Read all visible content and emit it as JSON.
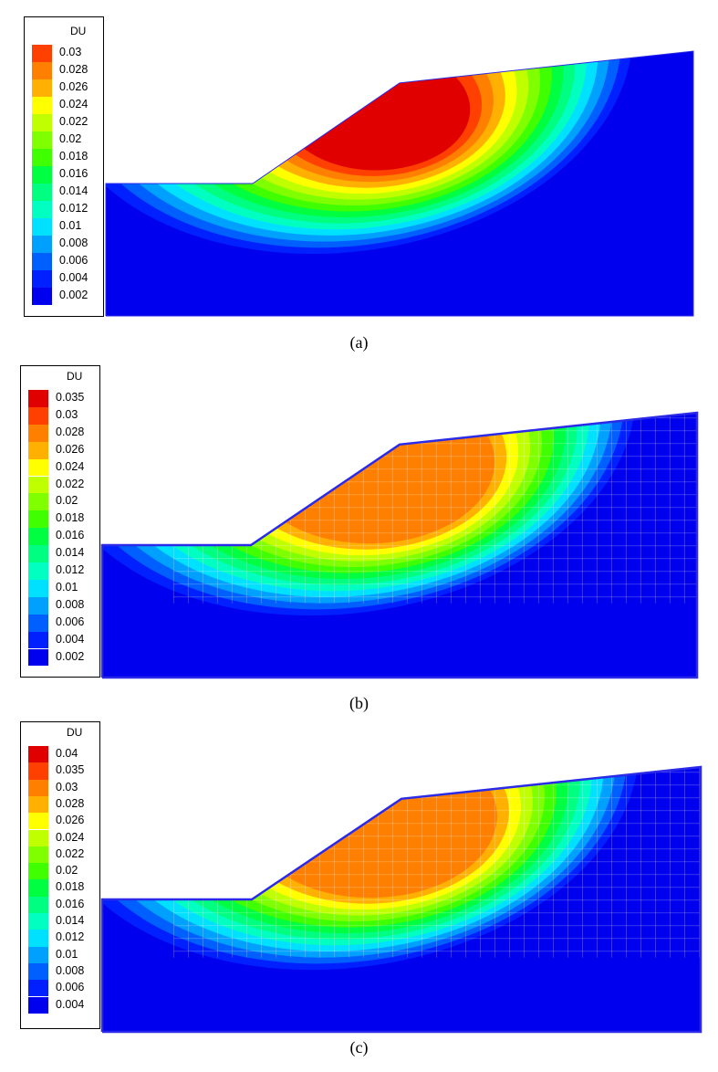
{
  "chart_data": [
    {
      "type": "heatmap",
      "legend_title": "DU",
      "caption": "(a)",
      "levels": [
        "0.03",
        "0.028",
        "0.026",
        "0.024",
        "0.022",
        "0.02",
        "0.018",
        "0.016",
        "0.014",
        "0.012",
        "0.01",
        "0.008",
        "0.006",
        "0.004",
        "0.002"
      ],
      "colors": [
        "#e00000",
        "#ff4000",
        "#ff8000",
        "#ffb000",
        "#ffff00",
        "#c0ff00",
        "#80ff00",
        "#40ff00",
        "#00ff40",
        "#00ff80",
        "#00ffc0",
        "#00e0ff",
        "#00a0ff",
        "#0060ff",
        "#0020ff",
        "#0000ee"
      ],
      "max_level_index": 0,
      "legend_placement": "left",
      "mesh_lines": false
    },
    {
      "type": "heatmap",
      "legend_title": "DU",
      "caption": "(b)",
      "levels": [
        "0.035",
        "0.03",
        "0.028",
        "0.026",
        "0.024",
        "0.022",
        "0.02",
        "0.018",
        "0.016",
        "0.014",
        "0.012",
        "0.01",
        "0.008",
        "0.006",
        "0.004",
        "0.002"
      ],
      "colors": [
        "#e00000",
        "#ff4000",
        "#ff8000",
        "#ffb000",
        "#ffff00",
        "#c0ff00",
        "#80ff00",
        "#40ff00",
        "#00ff40",
        "#00ff80",
        "#00ffc0",
        "#00e0ff",
        "#00a0ff",
        "#0060ff",
        "#0020ff",
        "#0000ee"
      ],
      "max_level_index": 2,
      "legend_placement": "left",
      "mesh_lines": true
    },
    {
      "type": "heatmap",
      "legend_title": "DU",
      "caption": "(c)",
      "levels": [
        "0.04",
        "0.035",
        "0.03",
        "0.028",
        "0.026",
        "0.024",
        "0.022",
        "0.02",
        "0.018",
        "0.016",
        "0.014",
        "0.012",
        "0.01",
        "0.008",
        "0.006",
        "0.004"
      ],
      "colors": [
        "#e00000",
        "#ff4000",
        "#ff8000",
        "#ffb000",
        "#ffff00",
        "#c0ff00",
        "#80ff00",
        "#40ff00",
        "#00ff40",
        "#00ff80",
        "#00ffc0",
        "#00e0ff",
        "#00a0ff",
        "#0060ff",
        "#0020ff",
        "#0000ee"
      ],
      "max_level_index": 2,
      "legend_placement": "left",
      "mesh_lines": true
    }
  ]
}
